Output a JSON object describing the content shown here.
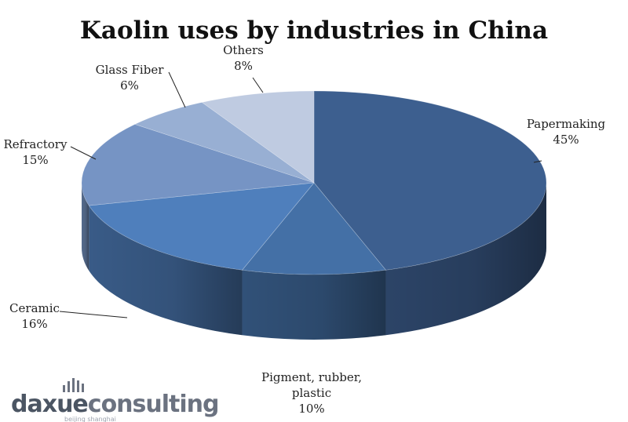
{
  "chart_data": {
    "type": "pie",
    "title": "Kaolin uses by industries in China",
    "slices": [
      {
        "label": "Papermaking",
        "value": 45,
        "value_label": "45%",
        "color": "#3d5f8f"
      },
      {
        "label": "Pigment, rubber, plastic",
        "value": 10,
        "value_label": "10%",
        "color": "#4470a6"
      },
      {
        "label": "Ceramic",
        "value": 16,
        "value_label": "16%",
        "color": "#4f7fbc"
      },
      {
        "label": "Refractory",
        "value": 15,
        "value_label": "15%",
        "color": "#7694c4"
      },
      {
        "label": "Glass Fiber",
        "value": 6,
        "value_label": "6%",
        "color": "#98afd3"
      },
      {
        "label": "Others",
        "value": 8,
        "value_label": "8%",
        "color": "#bfcbe1"
      }
    ]
  },
  "logo": {
    "part1": "daxue",
    "part2": "consulting",
    "sub": "beijing shanghai",
    "color1": "#4b5563",
    "color2": "#6b7280"
  }
}
